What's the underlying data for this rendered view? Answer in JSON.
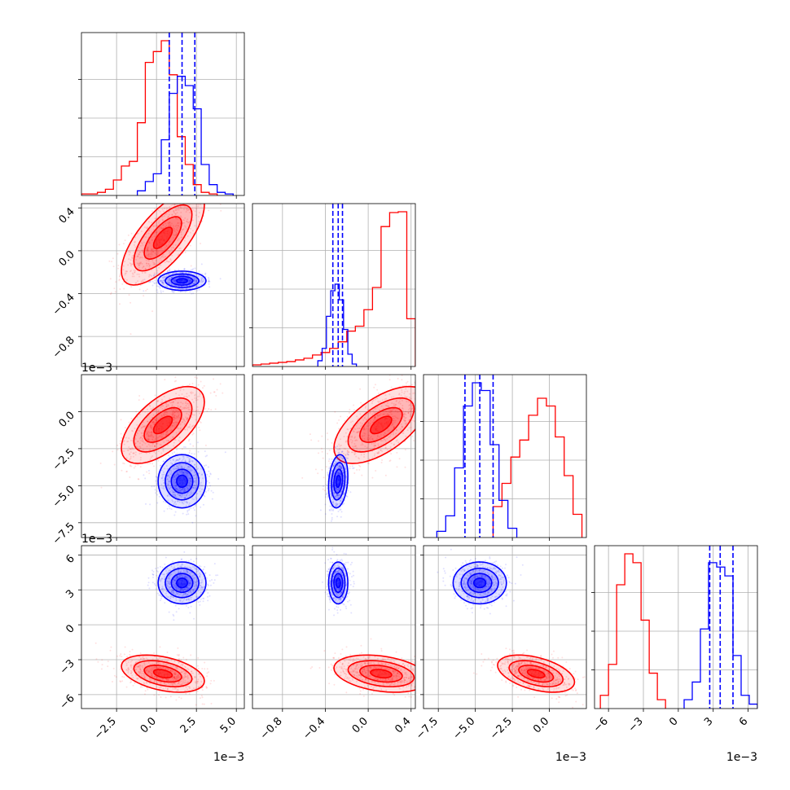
{
  "chart_data": {
    "type": "corner",
    "colors": {
      "red": "#ff0000",
      "blue": "#0000ff",
      "grid": "#b0b0b0",
      "axis": "#000000"
    },
    "grid": true,
    "params": [
      {
        "range": [
          -0.0047,
          0.0055
        ],
        "ticks": [
          -0.0025,
          0.0,
          0.0025,
          0.005
        ],
        "tick_labels": [
          "−2.5",
          "0.0",
          "2.5",
          "5.0"
        ],
        "offset_label": "1e−3"
      },
      {
        "range": [
          -1.08,
          0.44
        ],
        "ticks": [
          -0.8,
          -0.4,
          0.0,
          0.4
        ],
        "tick_labels": [
          "−0.8",
          "−0.4",
          "0.0",
          "0.4"
        ],
        "offset_label": ""
      },
      {
        "range": [
          -0.0085,
          0.0025
        ],
        "ticks": [
          -0.0075,
          -0.005,
          -0.0025,
          0.0
        ],
        "tick_labels": [
          "−7.5",
          "−5.0",
          "−2.5",
          "0.0"
        ],
        "offset_label": "1e−3"
      },
      {
        "range": [
          -0.0072,
          0.0068
        ],
        "ticks": [
          -0.006,
          -0.003,
          0.0,
          0.003,
          0.006
        ],
        "tick_labels": [
          "−6",
          "−3",
          "0",
          "3",
          "6"
        ],
        "offset_label": "1e−3"
      }
    ],
    "quantiles_blue": [
      [
        0.0008,
        0.0016,
        0.0024
      ],
      [
        -0.33,
        -0.28,
        -0.24
      ],
      [
        -0.0057,
        -0.0047,
        -0.0038
      ],
      [
        0.0027,
        0.0036,
        0.0047
      ]
    ],
    "distributions": {
      "red": {
        "mean": [
          0.0004,
          0.12,
          -0.0009,
          -0.0042
        ],
        "std": [
          0.0013,
          0.22,
          0.0013,
          0.0008
        ],
        "corr": [
          [
            0,
            1,
            0.7
          ],
          [
            0,
            2,
            0.6
          ],
          [
            0,
            3,
            -0.4
          ],
          [
            1,
            2,
            0.6
          ],
          [
            2,
            3,
            -0.45
          ],
          [
            1,
            3,
            -0.3
          ]
        ]
      },
      "blue": {
        "mean": [
          0.0016,
          -0.28,
          -0.0047,
          0.0036
        ],
        "std": [
          0.00075,
          0.045,
          0.0009,
          0.0009
        ],
        "corr": [
          [
            1,
            2,
            0.2
          ]
        ]
      }
    },
    "histograms": [
      {
        "red": {
          "edges": [
            -0.0047,
            -0.0042,
            -0.0037,
            -0.0032,
            -0.0027,
            -0.0022,
            -0.0017,
            -0.0012,
            -0.0007,
            -0.0002,
            0.0003,
            0.0008,
            0.0013,
            0.0018,
            0.0023,
            0.0028,
            0.0033,
            0.0038
          ],
          "counts": [
            1,
            1,
            2,
            4,
            10,
            19,
            22,
            47,
            86,
            93,
            100,
            78,
            38,
            20,
            7,
            2,
            1
          ]
        },
        "blue": {
          "edges": [
            -0.0012,
            -0.0007,
            -0.0002,
            0.0003,
            0.0008,
            0.0013,
            0.0018,
            0.0023,
            0.0028,
            0.0033,
            0.0038,
            0.0043,
            0.0048
          ],
          "counts": [
            3,
            9,
            14,
            36,
            66,
            77,
            71,
            56,
            20,
            7,
            2,
            1
          ]
        }
      },
      {
        "red": {
          "edges": [
            -1.08,
            -1.0,
            -0.92,
            -0.84,
            -0.76,
            -0.68,
            -0.6,
            -0.52,
            -0.44,
            -0.36,
            -0.28,
            -0.2,
            -0.12,
            -0.04,
            0.04,
            0.12,
            0.2,
            0.28,
            0.36,
            0.44
          ],
          "counts": [
            2,
            3,
            4,
            5,
            6,
            8,
            10,
            14,
            17,
            22,
            30,
            43,
            49,
            69,
            96,
            170,
            187,
            188,
            58
          ]
        },
        "blue": {
          "edges": [
            -0.47,
            -0.43,
            -0.39,
            -0.35,
            -0.31,
            -0.27,
            -0.23,
            -0.19,
            -0.15,
            -0.11
          ],
          "counts": [
            7,
            22,
            61,
            92,
            100,
            81,
            45,
            15,
            3
          ]
        }
      },
      {
        "red": {
          "edges": [
            -0.0038,
            -0.0032,
            -0.0026,
            -0.002,
            -0.0014,
            -0.0008,
            -0.0002,
            0.0004,
            0.001,
            0.0016,
            0.0022
          ],
          "counts": [
            20,
            35,
            52,
            63,
            79,
            90,
            85,
            65,
            40,
            15
          ]
        },
        "blue": {
          "edges": [
            -0.0076,
            -0.007,
            -0.0064,
            -0.0058,
            -0.0052,
            -0.0046,
            -0.004,
            -0.0034,
            -0.0028,
            -0.0022
          ],
          "counts": [
            4,
            14,
            45,
            85,
            100,
            95,
            60,
            24,
            6
          ]
        }
      },
      {
        "red": {
          "edges": [
            -0.0067,
            -0.006,
            -0.0053,
            -0.0046,
            -0.0039,
            -0.0032,
            -0.0025,
            -0.0018,
            -0.0011
          ],
          "counts": [
            3,
            10,
            28,
            35,
            33,
            20,
            8,
            2
          ]
        },
        "blue": {
          "edges": [
            0.0005,
            0.0012,
            0.0019,
            0.0026,
            0.0033,
            0.004,
            0.0047,
            0.0054,
            0.0061,
            0.0068
          ],
          "counts": [
            2,
            6,
            18,
            33,
            32,
            30,
            12,
            3,
            1
          ]
        }
      }
    ]
  }
}
